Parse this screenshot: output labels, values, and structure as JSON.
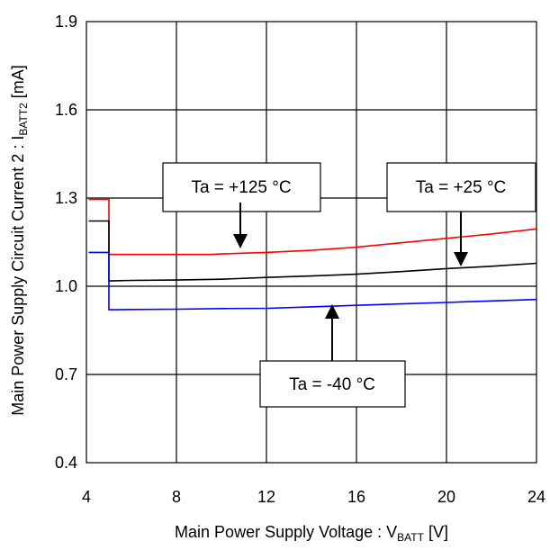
{
  "chart_data": {
    "type": "line",
    "xlabel": {
      "main": "Main Power Supply Voltage : V",
      "sub": "BATT",
      "unit": " [V]"
    },
    "ylabel": {
      "main": "Main Power Supply Circuit Current 2 : I",
      "sub": "BATT2",
      "unit": " [mA]"
    },
    "xlim": [
      4,
      24
    ],
    "ylim": [
      0.4,
      1.9
    ],
    "xticks": [
      4,
      8,
      12,
      16,
      20,
      24
    ],
    "yticks": [
      0.4,
      0.7,
      1.0,
      1.3,
      1.6,
      1.9
    ],
    "ytick_labels": [
      "0.4",
      "0.7",
      "1.0",
      "1.3",
      "1.6",
      "1.9"
    ],
    "grid": true,
    "series": [
      {
        "name": "Ta = +125 °C",
        "color": "#ff0000",
        "x": [
          4.1,
          5.0,
          5.0,
          6,
          8,
          9.5,
          10,
          12,
          14,
          16,
          18,
          20,
          22,
          24
        ],
        "y": [
          1.295,
          1.295,
          1.108,
          1.108,
          1.108,
          1.108,
          1.11,
          1.115,
          1.122,
          1.133,
          1.148,
          1.163,
          1.178,
          1.195
        ]
      },
      {
        "name": "Ta = +25 °C",
        "color": "#000000",
        "x": [
          4.1,
          4.9,
          5.0,
          5.0,
          6,
          8,
          10,
          12,
          14,
          16,
          18,
          20,
          22,
          24
        ],
        "y": [
          1.222,
          1.222,
          1.222,
          1.018,
          1.02,
          1.021,
          1.024,
          1.03,
          1.035,
          1.041,
          1.05,
          1.06,
          1.068,
          1.078
        ]
      },
      {
        "name": "Ta = -40 °C",
        "color": "#0000ff",
        "x": [
          4.1,
          4.9,
          5.0,
          5.0,
          6,
          8,
          10,
          12,
          14,
          16,
          18,
          20,
          22,
          24
        ],
        "y": [
          1.115,
          1.115,
          1.115,
          0.92,
          0.921,
          0.922,
          0.924,
          0.925,
          0.93,
          0.935,
          0.94,
          0.945,
          0.95,
          0.955
        ]
      }
    ],
    "annotations": [
      {
        "text": "Ta = +125 °C",
        "series": "Ta = +125 °C"
      },
      {
        "text": "Ta = +25 °C",
        "series": "Ta = +25 °C"
      },
      {
        "text": "Ta = -40 °C",
        "series": "Ta = -40 °C"
      }
    ]
  }
}
